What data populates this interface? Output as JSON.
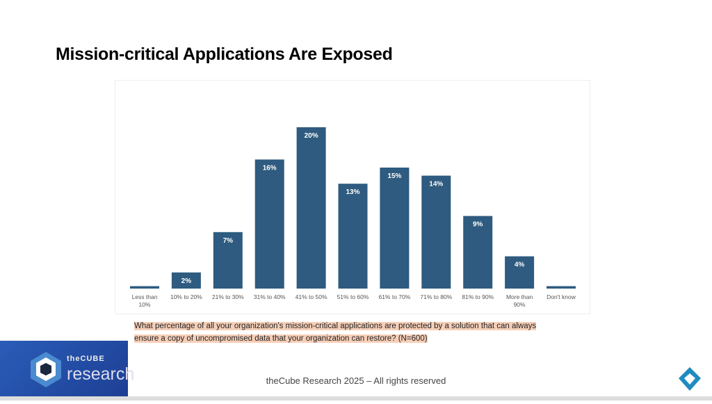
{
  "title": "Mission-critical Applications Are Exposed",
  "question": "What percentage of all your organization's mission-critical applications are protected by a solution that can always ensure a copy of uncompromised data that your organization can restore? (N=600)",
  "footer": "theCube Research 2025 – All rights reserved",
  "logo": {
    "line1": "theCUBE",
    "line2": "research"
  },
  "colors": {
    "bar": "#2e5b7f",
    "bar_top": "#3a6b8f"
  },
  "chart_data": {
    "type": "bar",
    "title": "",
    "xlabel": "",
    "ylabel": "",
    "ylim": [
      0,
      22
    ],
    "grid": false,
    "categories": [
      "Less than 10%",
      "10% to 20%",
      "21% to 30%",
      "31% to 40%",
      "41% to 50%",
      "51% to 60%",
      "61% to 70%",
      "71% to 80%",
      "81% to 90%",
      "More than 90%",
      "Don't know"
    ],
    "category_lines": [
      [
        "Less than",
        "10%"
      ],
      [
        "10% to 20%"
      ],
      [
        "21% to 30%"
      ],
      [
        "31% to 40%"
      ],
      [
        "41% to 50%"
      ],
      [
        "51% to 60%"
      ],
      [
        "61% to 70%"
      ],
      [
        "71% to 80%"
      ],
      [
        "81% to 90%"
      ],
      [
        "More than",
        "90%"
      ],
      [
        "Don't know"
      ]
    ],
    "values": [
      0.3,
      2,
      7,
      16,
      20,
      13,
      15,
      14,
      9,
      4,
      0.3
    ],
    "labels": [
      "",
      "2%",
      "7%",
      "16%",
      "20%",
      "13%",
      "15%",
      "14%",
      "9%",
      "4%",
      ""
    ]
  }
}
